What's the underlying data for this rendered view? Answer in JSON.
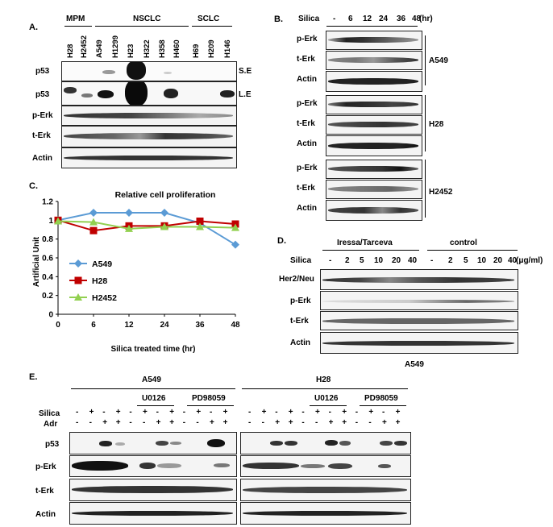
{
  "panel_a": {
    "label": "A.",
    "groups": [
      "MPM",
      "NSCLC",
      "SCLC"
    ],
    "lanes": [
      "H28",
      "H2452",
      "A549",
      "H1299",
      "H23",
      "H322",
      "H358",
      "H460",
      "H69",
      "H209",
      "H146"
    ],
    "rows": [
      "p53",
      "p53",
      "p-Erk",
      "t-Erk",
      "Actin"
    ],
    "exposure": [
      "S.E",
      "L.E"
    ]
  },
  "panel_b": {
    "label": "B.",
    "treatment": "Silica",
    "times": [
      "-",
      "6",
      "12",
      "24",
      "36",
      "48"
    ],
    "unit": "(hr)",
    "rows": [
      "p-Erk",
      "t-Erk",
      "Actin"
    ],
    "cells": [
      "A549",
      "H28",
      "H2452"
    ]
  },
  "panel_c": {
    "label": "C.",
    "chart_data": {
      "type": "line",
      "title": "Relative cell proliferation",
      "xlabel": "Silica treated time (hr)",
      "ylabel": "Artificial Unit",
      "x": [
        0,
        6,
        12,
        24,
        36,
        48
      ],
      "x_ticks": [
        "0",
        "6",
        "12",
        "24",
        "36",
        "48"
      ],
      "ylim": [
        0,
        1.2
      ],
      "y_ticks": [
        "0",
        "0.2",
        "0.4",
        "0.6",
        "0.8",
        "1",
        "1.2"
      ],
      "grid": false,
      "legend": "left",
      "series": [
        {
          "name": "A549",
          "values": [
            1.0,
            1.08,
            1.08,
            1.08,
            0.97,
            0.74
          ],
          "color": "#5b9bd5",
          "marker": "diamond"
        },
        {
          "name": "H28",
          "values": [
            1.0,
            0.89,
            0.94,
            0.94,
            0.99,
            0.96
          ],
          "color": "#c00000",
          "marker": "square"
        },
        {
          "name": "H2452",
          "values": [
            0.99,
            0.98,
            0.91,
            0.93,
            0.93,
            0.92
          ],
          "color": "#92d050",
          "marker": "triangle"
        }
      ]
    }
  },
  "panel_d": {
    "label": "D.",
    "groups": [
      "Iressa/Tarceva",
      "control"
    ],
    "treatment": "Silica",
    "doses": [
      "-",
      "2",
      "5",
      "10",
      "20",
      "40"
    ],
    "unit": "(μg/ml)",
    "rows": [
      "Her2/Neu",
      "p-Erk",
      "t-Erk",
      "Actin"
    ],
    "cell": "A549"
  },
  "panel_e": {
    "label": "E.",
    "cells": [
      "A549",
      "H28"
    ],
    "inhibitors": [
      "U0126",
      "PD98059"
    ],
    "conditions": [
      "Silica",
      "Adr"
    ],
    "silica_pattern": [
      "-",
      "+",
      "-",
      "+",
      "-",
      "+",
      "-",
      "+",
      "-",
      "+",
      "-",
      "+"
    ],
    "adr_pattern": [
      "-",
      "-",
      "+",
      "+",
      "-",
      "-",
      "+",
      "+",
      "-",
      "-",
      "+",
      "+"
    ],
    "rows": [
      "p53",
      "p-Erk",
      "t-Erk",
      "Actin"
    ]
  }
}
